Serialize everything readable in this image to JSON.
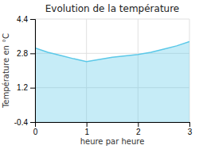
{
  "chart_data": {
    "type": "area",
    "title": "Evolution de la température",
    "xlabel": "heure par heure",
    "ylabel": "Température en °C",
    "x": [
      0,
      0.25,
      0.5,
      0.75,
      1.0,
      1.25,
      1.5,
      1.75,
      2.0,
      2.25,
      2.5,
      2.75,
      3.0
    ],
    "values": [
      3.05,
      2.85,
      2.7,
      2.55,
      2.42,
      2.52,
      2.62,
      2.68,
      2.75,
      2.85,
      3.0,
      3.15,
      3.35
    ],
    "color": "#5bc8e8",
    "xlim": [
      0,
      3
    ],
    "ylim": [
      -0.4,
      4.4
    ],
    "xticks": [
      0,
      1,
      2,
      3
    ],
    "yticks": [
      -0.4,
      1.2,
      2.8,
      4.4
    ],
    "grid": true
  }
}
